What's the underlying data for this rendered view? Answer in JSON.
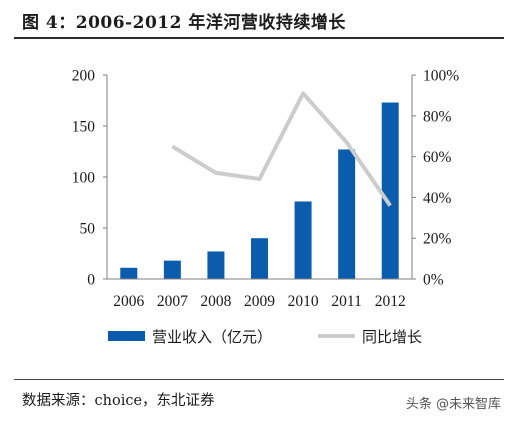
{
  "figure": {
    "title": "图 4：2006-2012 年洋河营收持续增长",
    "source": "数据来源：choice，东北证券",
    "watermark": "头条 @未来智库"
  },
  "chart_data": {
    "type": "bar",
    "categories": [
      "2006",
      "2007",
      "2008",
      "2009",
      "2010",
      "2011",
      "2012"
    ],
    "series": [
      {
        "name": "营业收入（亿元）",
        "type": "bar",
        "axis": "left",
        "color": "#0b5cad",
        "values": [
          11,
          18,
          27,
          40,
          76,
          127,
          173
        ]
      },
      {
        "name": "同比增长",
        "type": "line",
        "axis": "right",
        "color": "#cccccc",
        "values": [
          null,
          0.65,
          0.52,
          0.49,
          0.91,
          0.67,
          0.36
        ]
      }
    ],
    "y_left": {
      "ticks": [
        "0",
        "50",
        "100",
        "150",
        "200"
      ],
      "ylim": [
        0,
        200
      ]
    },
    "y_right": {
      "ticks": [
        "0%",
        "20%",
        "40%",
        "60%",
        "80%",
        "100%"
      ],
      "ylim": [
        0,
        1
      ]
    },
    "legend": {
      "position": "bottom"
    },
    "grid": false
  }
}
